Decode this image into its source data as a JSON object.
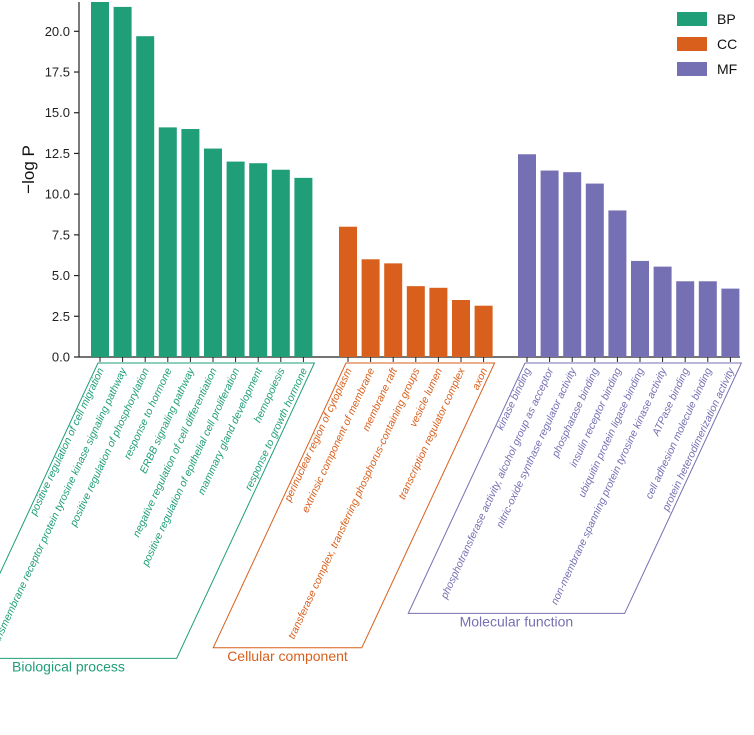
{
  "chart_data": {
    "type": "bar",
    "ylabel": "−log P",
    "xlabel": "",
    "ylim": [
      0,
      21.8
    ],
    "yticks": [
      "0.0",
      "2.5",
      "5.0",
      "7.5",
      "10.0",
      "12.5",
      "15.0",
      "17.5",
      "20.0"
    ],
    "colors": {
      "BP": "#1f9e78",
      "CC": "#d95f1c",
      "MF": "#7570b3"
    },
    "legend": {
      "position": "top-right",
      "entries": [
        "BP",
        "CC",
        "MF"
      ]
    },
    "groups": [
      {
        "key": "BP",
        "label": "Biological process",
        "categories": [
          "positive regulation of cell migration",
          "transmembrane receptor protein tyrosine kinase signaling pathway",
          "positive regulation of phosphorylation",
          "response to hormone",
          "ERBB signaling pathway",
          "negative regulation of cell differentiation",
          "positive regulation of epithelial cell proliferation",
          "mammary gland development",
          "hemopoiesis",
          "response to growth hormone"
        ],
        "values": [
          21.8,
          21.5,
          19.7,
          14.1,
          14.0,
          12.8,
          12.0,
          11.9,
          11.5,
          11.0
        ]
      },
      {
        "key": "CC",
        "label": "Cellular component",
        "categories": [
          "perinuclear region of cytoplasm",
          "extrinsic component of membrane",
          "membrane raft",
          "transferase complex, transferring phosphorus-containing groups",
          "vesicle lumen",
          "transcription regulator complex",
          "axon"
        ],
        "values": [
          8.0,
          6.0,
          5.75,
          4.35,
          4.25,
          3.5,
          3.15
        ]
      },
      {
        "key": "MF",
        "label": "Molecular function",
        "categories": [
          "kinase binding",
          "phosphotransferase activity, alcohol group as acceptor",
          "nitric-oxide synthase regulator activity",
          "phosphatase binding",
          "insulin receptor binding",
          "ubiquitin protein ligase binding",
          "non-membrane spanning protein tyrosine kinase activity",
          "ATPase binding",
          "cell adhesion molecule binding",
          "protein heterodimerization activity"
        ],
        "values": [
          12.45,
          11.45,
          11.35,
          10.65,
          9.0,
          5.9,
          5.55,
          4.65,
          4.65,
          4.2
        ]
      }
    ]
  }
}
